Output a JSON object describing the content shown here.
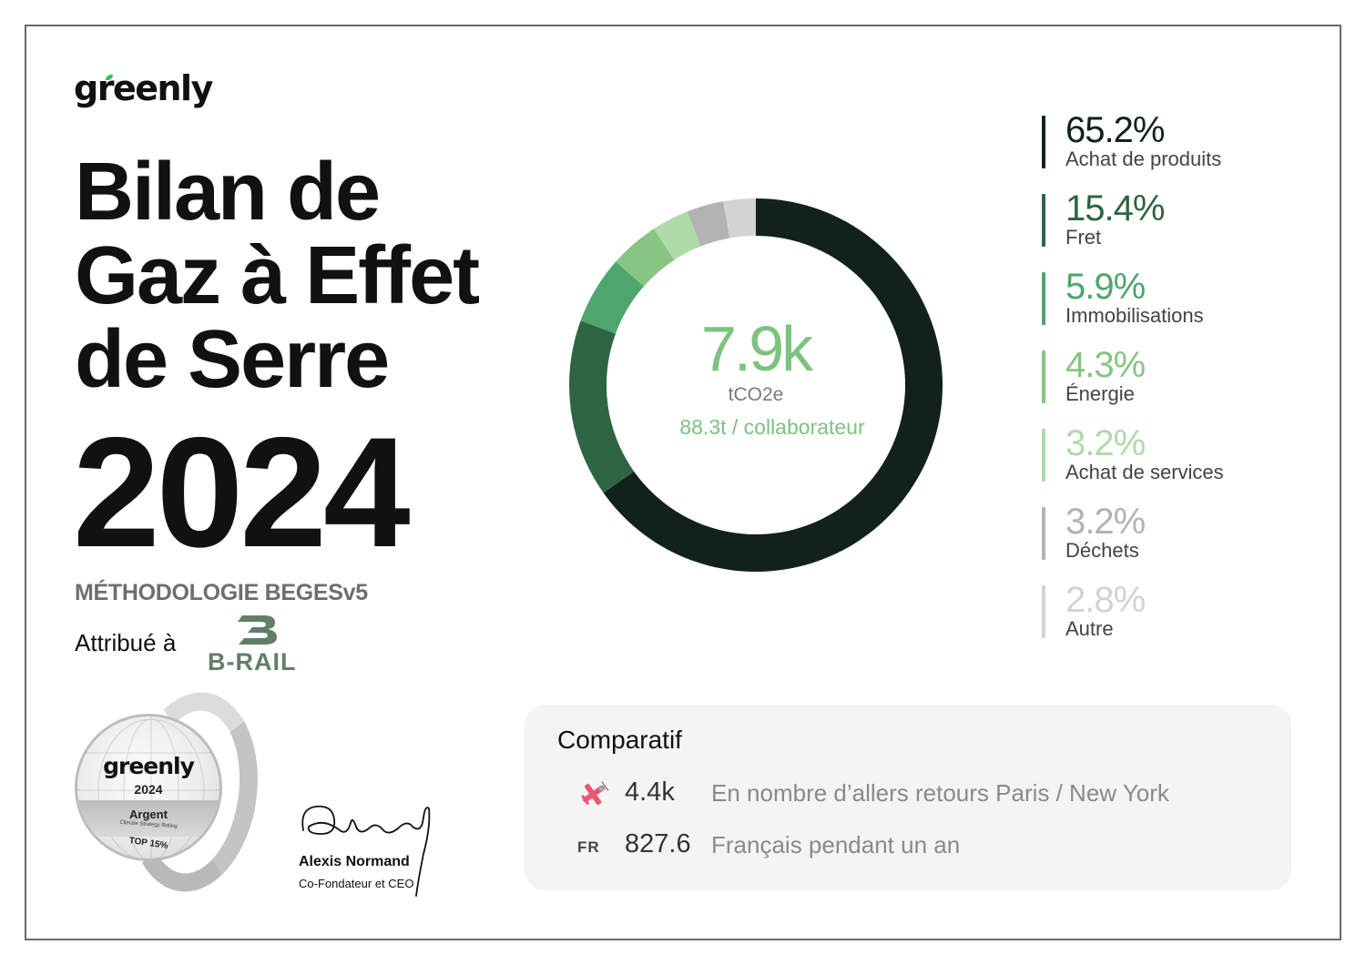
{
  "brand": {
    "logo": "greenly"
  },
  "title": {
    "lines": [
      "Bilan de",
      "Gaz à Effet",
      "de Serre"
    ],
    "year": "2024"
  },
  "methodology": "MÉTHODOLOGIE BEGESv5",
  "attribution": {
    "label": "Attribué à",
    "company": "B-RAIL"
  },
  "badge": {
    "logo": "greenly",
    "year": "2024",
    "level": "Argent",
    "rating": "Climate Strategy Rating",
    "rank": "TOP 15%"
  },
  "signature": {
    "name": "Alexis Normand",
    "role": "Co-Fondateur et CEO"
  },
  "summary": {
    "total": "7.9k",
    "unit": "tCO2e",
    "per_employee": "88.3t / collaborateur"
  },
  "colors": {
    "accent_green": "#7dc37f",
    "panel_bg": "#f4f4f4",
    "text_dark": "#111111"
  },
  "chart_data": {
    "type": "pie",
    "variant": "donut",
    "title": "Bilan de Gaz à Effet de Serre 2024",
    "center_label": "7.9k tCO2e",
    "direction": "clockwise from top",
    "categories": [
      "Achat de produits",
      "Fret",
      "Immobilisations",
      "Énergie",
      "Achat de services",
      "Déchets",
      "Autre"
    ],
    "values": [
      65.2,
      15.4,
      5.9,
      4.3,
      3.2,
      3.2,
      2.8
    ],
    "labels": [
      "65.2%",
      "15.4%",
      "5.9%",
      "4.3%",
      "3.2%",
      "3.2%",
      "2.8%"
    ],
    "colors": [
      "#10221a",
      "#2f6443",
      "#4ea66c",
      "#86c584",
      "#afdba9",
      "#b3b3b3",
      "#d3d3d3"
    ],
    "legend_position": "right"
  },
  "comparatif": {
    "title": "Comparatif",
    "rows": [
      {
        "icon": "airplane-icon",
        "value": "4.4k",
        "text": "En nombre d’allers retours Paris / New York"
      },
      {
        "icon": "FR",
        "value": "827.6",
        "text": "Français pendant un an"
      }
    ]
  }
}
